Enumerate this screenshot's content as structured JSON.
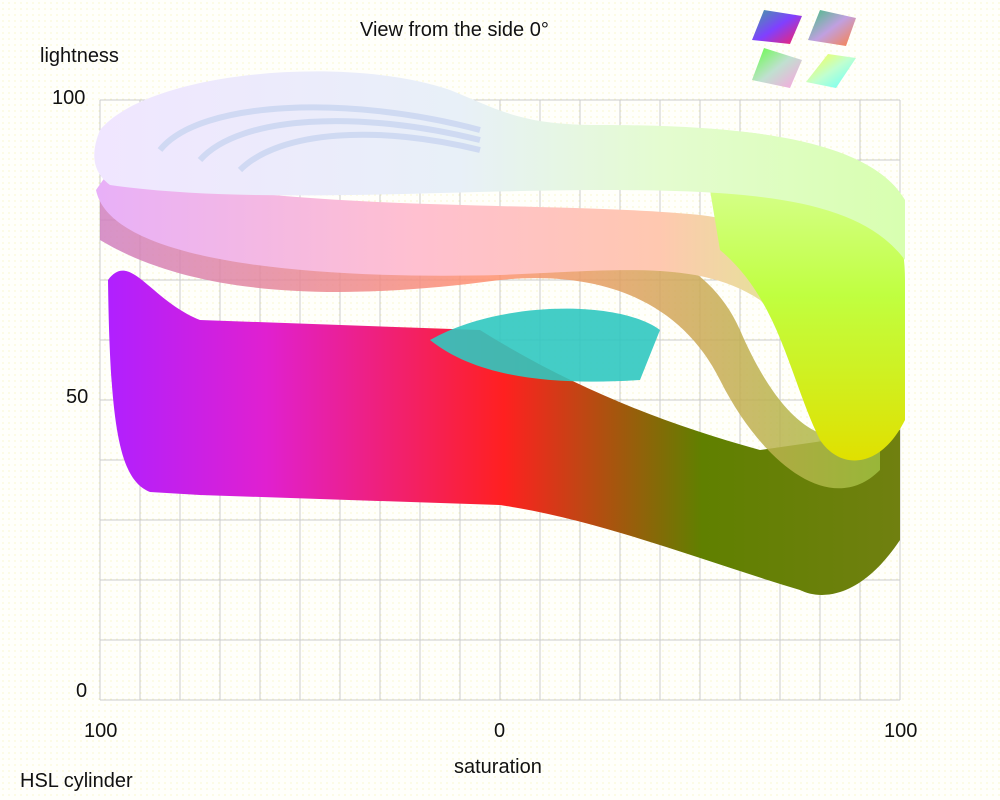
{
  "title": "View from the side 0°",
  "caption": "HSL cylinder",
  "view_icons": [
    "view-side-0-icon",
    "view-side-90-icon",
    "view-top-icon",
    "view-bottom-icon"
  ],
  "chart_data": {
    "type": "3d-surface",
    "title": "View from the side 0°",
    "xlabel": "saturation",
    "ylabel": "lightness",
    "x_tick_labels": [
      "100",
      "0",
      "100"
    ],
    "y_tick_labels": [
      "100",
      "50",
      "0"
    ],
    "xlim": [
      -100,
      100
    ],
    "ylim": [
      0,
      100
    ],
    "grid": true,
    "grid_color": "#cccccc"
  }
}
